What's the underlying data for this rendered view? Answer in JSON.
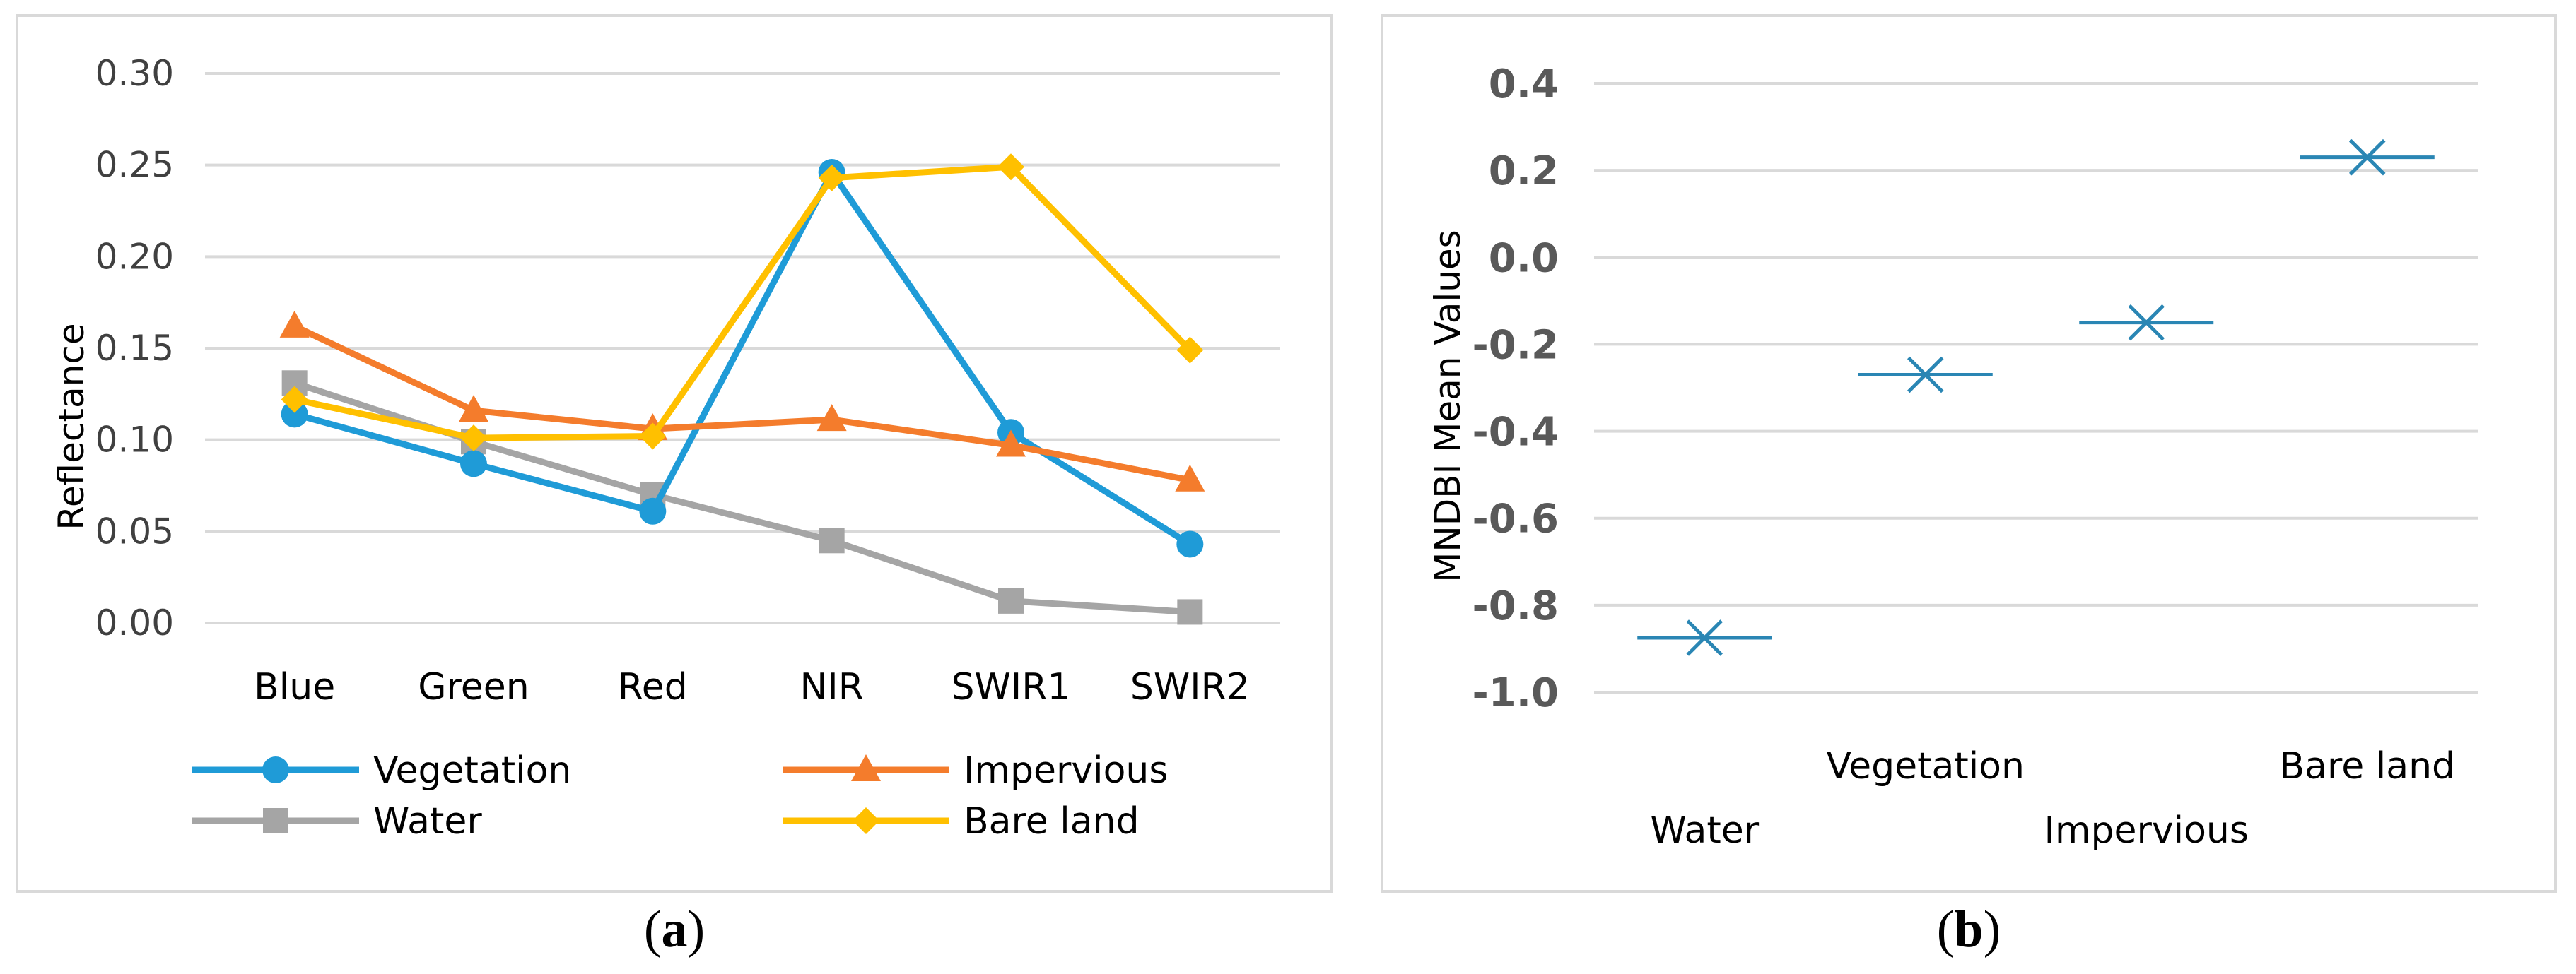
{
  "chart_data": [
    {
      "type": "line",
      "panel": "a",
      "caption_letter": "a",
      "ylabel": "Reflectance",
      "xlabel": "",
      "categories": [
        "Blue",
        "Green",
        "Red",
        "NIR",
        "SWIR1",
        "SWIR2"
      ],
      "ylim": [
        0,
        0.3
      ],
      "yticks": [
        "0.00",
        "0.05",
        "0.10",
        "0.15",
        "0.20",
        "0.25",
        "0.30"
      ],
      "grid": true,
      "legend_position": "bottom",
      "series": [
        {
          "name": "Vegetation",
          "marker": "circle",
          "color": "#1F9BD7",
          "values": [
            0.114,
            0.087,
            0.061,
            0.246,
            0.104,
            0.043
          ]
        },
        {
          "name": "Impervious",
          "marker": "triangle",
          "color": "#F47C2C",
          "values": [
            0.162,
            0.116,
            0.106,
            0.111,
            0.097,
            0.078
          ]
        },
        {
          "name": "Water",
          "marker": "square",
          "color": "#A5A5A5",
          "values": [
            0.131,
            0.099,
            0.07,
            0.045,
            0.012,
            0.006
          ]
        },
        {
          "name": "Bare land",
          "marker": "diamond",
          "color": "#FFC000",
          "values": [
            0.122,
            0.101,
            0.102,
            0.243,
            0.249,
            0.149
          ]
        }
      ]
    },
    {
      "type": "scatter",
      "panel": "b",
      "caption_letter": "b",
      "ylabel": "MNDBI Mean Values",
      "xlabel": "",
      "ylim": [
        -1.0,
        0.4
      ],
      "yticks": [
        "-1.0",
        "-0.8",
        "-0.6",
        "-0.4",
        "-0.2",
        "0.0",
        "0.2",
        "0.4"
      ],
      "grid": true,
      "marker": "x-with-bar",
      "color": "#2A86B4",
      "points": [
        {
          "label": "Water",
          "value": -0.875
        },
        {
          "label": "Vegetation",
          "value": -0.27
        },
        {
          "label": "Impervious",
          "value": -0.15
        },
        {
          "label": "Bare land",
          "value": 0.23
        }
      ]
    }
  ]
}
